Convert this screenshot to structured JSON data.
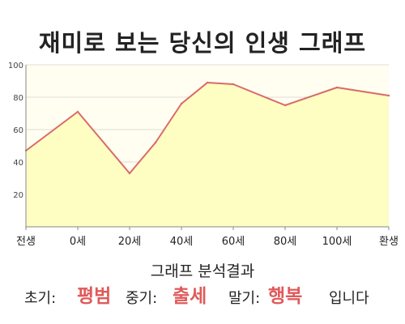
{
  "chart_data": {
    "type": "area",
    "title": "재미로 보는 당신의 인생 그래프",
    "xlabel": "",
    "ylabel": "",
    "categories": [
      "전생",
      "0세",
      "20세",
      "40세",
      "60세",
      "80세",
      "100세",
      "환생"
    ],
    "x": [
      -20,
      0,
      20,
      40,
      60,
      80,
      100,
      120
    ],
    "ylim": [
      0,
      100
    ],
    "yticks": [
      20,
      40,
      60,
      80,
      100
    ],
    "grid": "horizontal",
    "legend": "none",
    "series": [
      {
        "points": [
          [
            -20,
            47
          ],
          [
            0,
            71
          ],
          [
            20,
            33
          ],
          [
            30,
            52
          ],
          [
            40,
            76
          ],
          [
            50,
            89
          ],
          [
            60,
            88
          ],
          [
            80,
            75
          ],
          [
            100,
            86
          ],
          [
            120,
            81
          ]
        ]
      }
    ],
    "colors": {
      "fill": "#fefdc2",
      "line": "#d96a6a",
      "background": "#fffef0",
      "grid": "#dddddd",
      "axis": "#888888"
    }
  },
  "analysis": {
    "title": "그래프 분석결과",
    "early_label": "초기:",
    "early_value": "평범",
    "middle_label": "중기:",
    "middle_value": "출세",
    "late_label": "말기:",
    "late_value": "행복",
    "ending": "입니다",
    "value_color": "#e05a5a"
  }
}
